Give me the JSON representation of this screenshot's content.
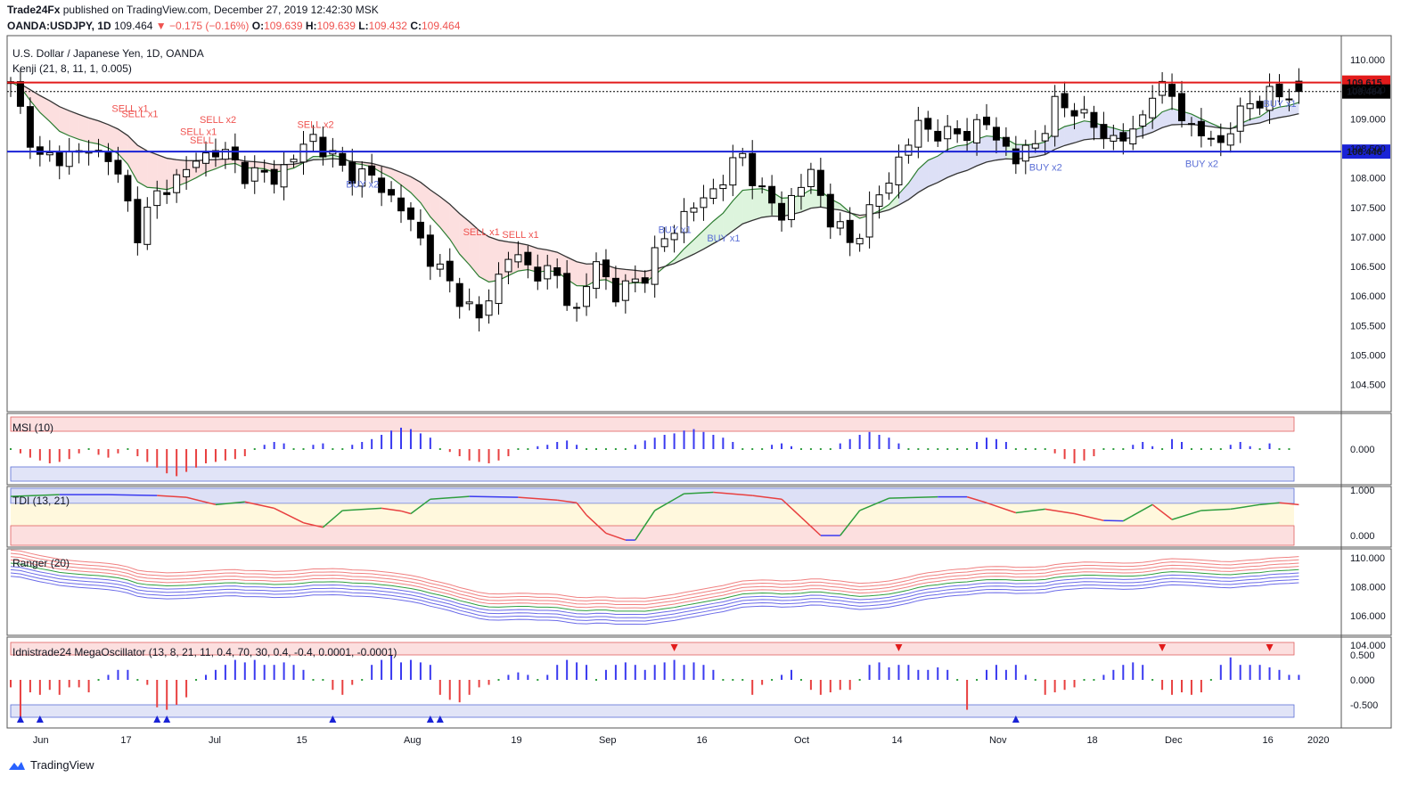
{
  "header": {
    "author": "Trade24Fx",
    "published_text": "published on TradingView.com, December 27, 2019 12:42:30 MSK",
    "symbol_line": "OANDA:USDJPY, 1D",
    "last": "109.464",
    "change": "−0.175 (−0.16%)",
    "o_label": "O:",
    "o_value": "109.639",
    "h_label": "H:",
    "h_value": "109.639",
    "l_label": "L:",
    "l_value": "109.432",
    "c_label": "C:",
    "c_value": "109.464"
  },
  "main_pane": {
    "title": "U.S. Dollar / Japanese Yen, 1D, OANDA",
    "indicator": "Kenji (21, 8, 11, 1, 0.005)"
  },
  "price_tags": {
    "resistance": "109.615",
    "last": "109.464",
    "support": "108.446"
  },
  "colors": {
    "resistance": "#e21b1b",
    "support": "#1a23d6",
    "bull": "#ffffff",
    "bear": "#000000",
    "sell_text": "#ef5350",
    "buy_text": "#5b6fd6",
    "hist_up": "#3a3af0",
    "hist_down": "#e84040",
    "hist_flat": "#2e9e3e"
  },
  "chart_data": [
    {
      "type": "candlestick",
      "title": "U.S. Dollar / Japanese Yen, 1D, OANDA",
      "ylim": [
        104.1,
        110.35
      ],
      "y_ticks": [
        "110.000",
        "109.500",
        "109.000",
        "108.500",
        "108.000",
        "107.500",
        "107.000",
        "106.500",
        "106.000",
        "105.500",
        "105.000",
        "104.500"
      ],
      "x_ticks": [
        "Jun",
        "17",
        "Jul",
        "15",
        "Aug",
        "19",
        "Sep",
        "16",
        "Oct",
        "14",
        "Nov",
        "18",
        "Dec",
        "16",
        "2020"
      ],
      "horizontal_levels": [
        109.615,
        108.446
      ],
      "close_anchors": [
        [
          0,
          109.55
        ],
        [
          3,
          108.3
        ],
        [
          8,
          108.45
        ],
        [
          10,
          108.4
        ],
        [
          13,
          107.1
        ],
        [
          15,
          107.7
        ],
        [
          18,
          108.15
        ],
        [
          21,
          108.5
        ],
        [
          24,
          108.1
        ],
        [
          27,
          108.0
        ],
        [
          31,
          108.7
        ],
        [
          34,
          108.15
        ],
        [
          37,
          108.0
        ],
        [
          40,
          107.5
        ],
        [
          44,
          106.4
        ],
        [
          48,
          105.6
        ],
        [
          51,
          106.7
        ],
        [
          53,
          106.5
        ],
        [
          56,
          106.3
        ],
        [
          58,
          105.7
        ],
        [
          60,
          106.6
        ],
        [
          62,
          106.0
        ],
        [
          65,
          106.4
        ],
        [
          68,
          107.2
        ],
        [
          72,
          107.8
        ],
        [
          75,
          108.4
        ],
        [
          77,
          107.7
        ],
        [
          79,
          107.4
        ],
        [
          82,
          108.1
        ],
        [
          84,
          107.3
        ],
        [
          86,
          106.9
        ],
        [
          88,
          107.4
        ],
        [
          90,
          108.0
        ],
        [
          93,
          108.9
        ],
        [
          96,
          108.7
        ],
        [
          100,
          108.9
        ],
        [
          103,
          108.3
        ],
        [
          105,
          108.6
        ],
        [
          107,
          109.2
        ],
        [
          109,
          109.2
        ],
        [
          112,
          108.7
        ],
        [
          115,
          108.7
        ],
        [
          117,
          109.5
        ],
        [
          119,
          109.4
        ],
        [
          121,
          108.8
        ],
        [
          124,
          108.6
        ],
        [
          127,
          109.3
        ],
        [
          130,
          109.4
        ],
        [
          132,
          109.464
        ]
      ],
      "signals": [
        {
          "label": "SELL x1",
          "x": 12,
          "y": 109.12
        },
        {
          "label": "SELL x1",
          "x": 13,
          "y": 109.03
        },
        {
          "label": "SELL x2",
          "x": 21,
          "y": 108.93
        },
        {
          "label": "SELL x1",
          "x": 19,
          "y": 108.73
        },
        {
          "label": "SELL",
          "x": 20,
          "y": 108.58
        },
        {
          "label": "SELL x2",
          "x": 31,
          "y": 108.85
        },
        {
          "label": "BUY x2",
          "x": 36,
          "y": 107.84
        },
        {
          "label": "SELL x1",
          "x": 48,
          "y": 107.03
        },
        {
          "label": "SELL x1",
          "x": 52,
          "y": 106.98
        },
        {
          "label": "BUY x1",
          "x": 68,
          "y": 107.07
        },
        {
          "label": "BUY x1",
          "x": 73,
          "y": 106.92
        },
        {
          "label": "BUY x2",
          "x": 106,
          "y": 108.12
        },
        {
          "label": "BUY x2",
          "x": 122,
          "y": 108.18
        },
        {
          "label": "BUY x1",
          "x": 130,
          "y": 109.2
        }
      ]
    },
    {
      "type": "bar",
      "title": "MSI (10)",
      "y_ticks": [
        "0.000"
      ],
      "values": [
        0,
        -0.3,
        -0.6,
        -0.8,
        -1,
        -0.9,
        -0.7,
        -0.3,
        0,
        -0.4,
        -0.6,
        -0.3,
        0,
        -0.5,
        -0.9,
        -1.3,
        -1.7,
        -1.9,
        -1.6,
        -1.3,
        -1,
        -0.9,
        -0.8,
        -0.7,
        -0.5,
        0,
        0.3,
        0.5,
        0.4,
        0,
        0,
        0.3,
        0.4,
        0,
        0,
        0.3,
        0.5,
        0.7,
        1,
        1.3,
        1.5,
        1.4,
        1.1,
        0.8,
        0,
        -0.2,
        -0.5,
        -0.8,
        -0.9,
        -1,
        -0.8,
        -0.5,
        0,
        0,
        0.2,
        0.3,
        0.5,
        0.6,
        0.3,
        0,
        0,
        0,
        0,
        0,
        0.3,
        0.6,
        0.8,
        1,
        1.1,
        1.3,
        1.4,
        1.2,
        1,
        0.8,
        0.5,
        0,
        0,
        0,
        0.3,
        0.4,
        0.2,
        0,
        0,
        0,
        0,
        0.4,
        0.7,
        1,
        1.2,
        1,
        0.8,
        0.4,
        0,
        0,
        0,
        0,
        0,
        0,
        0,
        0.5,
        0.8,
        0.7,
        0.5,
        0,
        0,
        0,
        0,
        -0.3,
        -0.7,
        -1,
        -0.8,
        -0.5,
        0,
        0,
        0,
        0.3,
        0.5,
        0.2,
        0,
        0.7,
        0.5,
        0,
        0,
        0,
        0,
        0.3,
        0.5,
        0.2,
        0,
        0.4,
        0,
        0
      ],
      "value_note": "relative bar heights, normalized to the pane range"
    },
    {
      "type": "line",
      "title": "TDI (13, 21)",
      "y_ticks": [
        "1.000",
        "0.000"
      ],
      "points": [
        [
          0,
          0.86
        ],
        [
          5,
          0.9
        ],
        [
          10,
          0.9
        ],
        [
          15,
          0.88
        ],
        [
          18,
          0.84
        ],
        [
          21,
          0.68
        ],
        [
          24,
          0.74
        ],
        [
          27,
          0.6
        ],
        [
          30,
          0.28
        ],
        [
          32,
          0.18
        ],
        [
          34,
          0.55
        ],
        [
          38,
          0.6
        ],
        [
          40,
          0.54
        ],
        [
          41,
          0.48
        ],
        [
          43,
          0.8
        ],
        [
          47,
          0.86
        ],
        [
          52,
          0.84
        ],
        [
          56,
          0.78
        ],
        [
          58,
          0.72
        ],
        [
          59,
          0.45
        ],
        [
          61,
          0.05
        ],
        [
          63,
          -0.1
        ],
        [
          64,
          -0.1
        ],
        [
          66,
          0.55
        ],
        [
          69,
          0.92
        ],
        [
          72,
          0.95
        ],
        [
          76,
          0.88
        ],
        [
          79,
          0.8
        ],
        [
          81,
          0.4
        ],
        [
          83,
          0.0
        ],
        [
          85,
          0.0
        ],
        [
          87,
          0.55
        ],
        [
          90,
          0.82
        ],
        [
          95,
          0.85
        ],
        [
          98,
          0.85
        ],
        [
          100,
          0.72
        ],
        [
          103,
          0.5
        ],
        [
          106,
          0.58
        ],
        [
          109,
          0.48
        ],
        [
          112,
          0.33
        ],
        [
          114,
          0.32
        ],
        [
          117,
          0.68
        ],
        [
          119,
          0.35
        ],
        [
          122,
          0.55
        ],
        [
          125,
          0.58
        ],
        [
          128,
          0.68
        ],
        [
          130,
          0.72
        ],
        [
          132,
          0.68
        ]
      ]
    },
    {
      "type": "line",
      "title": "Ranger (20)",
      "y_ticks": [
        "110.000",
        "108.000",
        "106.000",
        "104.000"
      ],
      "series_note": "price-derived envelope bands"
    },
    {
      "type": "bar",
      "title": "Idnistrade24 MegaOscillator (13, 8, 21, 11, 0.4, 70, 30, 0.4, -0.4, 0.0001, -0.0001)",
      "y_ticks": [
        "0.500",
        "0.000",
        "-0.500"
      ],
      "values": [
        -0.15,
        -0.75,
        -0.25,
        -0.3,
        -0.2,
        -0.3,
        -0.15,
        -0.15,
        -0.25,
        0,
        0.1,
        0.2,
        0.2,
        0,
        -0.1,
        -0.55,
        -0.6,
        -0.5,
        -0.35,
        0,
        0.1,
        0.2,
        0.3,
        0.4,
        0.35,
        0.4,
        0.3,
        0.3,
        0.35,
        0.3,
        0.2,
        0,
        0,
        -0.2,
        -0.3,
        -0.1,
        0,
        0.3,
        0.4,
        0.5,
        0.35,
        0.4,
        0.35,
        0.3,
        -0.3,
        -0.4,
        -0.45,
        -0.3,
        -0.15,
        -0.1,
        0,
        0.1,
        0.15,
        0.1,
        0,
        0.1,
        0.3,
        0.4,
        0.35,
        0.3,
        0,
        0.2,
        0.3,
        0.35,
        0.3,
        0.2,
        0.3,
        0.35,
        0.4,
        0.3,
        0.35,
        0.3,
        0.2,
        0,
        0,
        0,
        -0.3,
        -0.1,
        0,
        0.1,
        0.2,
        0,
        -0.2,
        -0.3,
        -0.25,
        -0.2,
        -0.2,
        0,
        0.3,
        0.35,
        0.25,
        0.3,
        0.3,
        0.2,
        0.2,
        0.25,
        0.2,
        0,
        -0.6,
        0,
        0.2,
        0.3,
        0.2,
        0.3,
        0.1,
        0,
        -0.3,
        -0.25,
        -0.2,
        -0.15,
        0,
        0,
        0.1,
        0.2,
        0.3,
        0.35,
        0.3,
        0,
        -0.2,
        -0.3,
        -0.25,
        -0.3,
        -0.25,
        0,
        0.3,
        0.45,
        0.3,
        0.3,
        0.3,
        0.25,
        0.2,
        0.1,
        0.1
      ],
      "markers_down": [
        68,
        91,
        118,
        129
      ],
      "markers_up": [
        1,
        3,
        15,
        16,
        33,
        43,
        44,
        103
      ]
    }
  ],
  "footer": {
    "logo_text": "TradingView"
  }
}
